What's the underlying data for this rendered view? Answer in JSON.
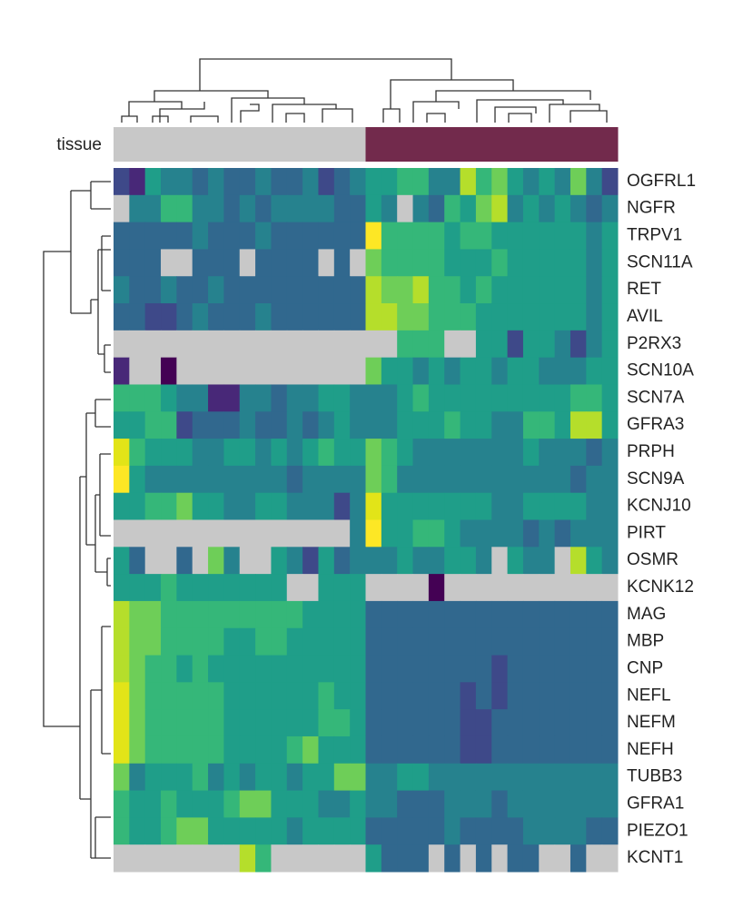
{
  "chart_data": {
    "type": "heatmap",
    "rows": [
      "OGFRL1",
      "NGFR",
      "TRPV1",
      "SCN11A",
      "RET",
      "AVIL",
      "P2RX3",
      "SCN10A",
      "SCN7A",
      "GFRA3",
      "PRPH",
      "SCN9A",
      "KCNJ10",
      "PIRT",
      "OSMR",
      "KCNK12",
      "MAG",
      "MBP",
      "CNP",
      "NEFL",
      "NEFM",
      "NEFH",
      "TUBB3",
      "GFRA1",
      "PIEZO1",
      "KCNT1"
    ],
    "tissue": {
      "label": "tissue",
      "colors": [
        "#c8c8c8",
        "#722a4c"
      ],
      "values": [
        0,
        0,
        0,
        0,
        0,
        0,
        0,
        0,
        0,
        0,
        0,
        0,
        0,
        0,
        0,
        0,
        1,
        1,
        1,
        1,
        1,
        1,
        1,
        1,
        1,
        1,
        1,
        1,
        1,
        1,
        1,
        1
      ]
    },
    "zlim": [
      0,
      10
    ],
    "colormap": [
      "#440154",
      "#482878",
      "#3e4989",
      "#31688e",
      "#26828e",
      "#1f9e89",
      "#35b779",
      "#6ece58",
      "#b5de2b",
      "#e2e418",
      "#fde725"
    ],
    "missing_color": "#c8c8c8",
    "values": [
      [
        2,
        1,
        5,
        4,
        4,
        3,
        4,
        3,
        3,
        4,
        3,
        3,
        4,
        2,
        3,
        4,
        5,
        5,
        6,
        6,
        4,
        4,
        8,
        6,
        7,
        5,
        4,
        5,
        4,
        7,
        4,
        2
      ],
      [
        null,
        4,
        4,
        6,
        6,
        4,
        4,
        3,
        4,
        3,
        4,
        4,
        4,
        4,
        3,
        3,
        5,
        4,
        null,
        4,
        3,
        6,
        5,
        7,
        8,
        4,
        5,
        4,
        5,
        4,
        3,
        4
      ],
      [
        3,
        3,
        3,
        3,
        3,
        4,
        3,
        3,
        3,
        4,
        3,
        3,
        3,
        3,
        3,
        3,
        10,
        6,
        6,
        6,
        6,
        5,
        6,
        6,
        5,
        5,
        5,
        5,
        5,
        5,
        4,
        5
      ],
      [
        3,
        3,
        3,
        null,
        null,
        3,
        3,
        3,
        null,
        3,
        3,
        3,
        3,
        null,
        3,
        null,
        7,
        6,
        6,
        6,
        6,
        5,
        5,
        5,
        6,
        5,
        5,
        5,
        5,
        5,
        4,
        5
      ],
      [
        4,
        3,
        3,
        4,
        3,
        3,
        4,
        3,
        3,
        3,
        3,
        3,
        3,
        3,
        3,
        3,
        8,
        7,
        7,
        8,
        6,
        6,
        5,
        6,
        5,
        5,
        5,
        5,
        5,
        5,
        4,
        5
      ],
      [
        3,
        3,
        2,
        2,
        3,
        4,
        3,
        3,
        3,
        4,
        3,
        3,
        3,
        3,
        3,
        3,
        8,
        8,
        7,
        7,
        6,
        6,
        6,
        5,
        5,
        5,
        5,
        5,
        5,
        5,
        4,
        5
      ],
      [
        null,
        null,
        null,
        null,
        null,
        null,
        null,
        null,
        null,
        null,
        null,
        null,
        null,
        null,
        null,
        null,
        null,
        null,
        6,
        6,
        6,
        null,
        null,
        5,
        5,
        2,
        5,
        5,
        4,
        2,
        4,
        5
      ],
      [
        1,
        null,
        null,
        0,
        null,
        null,
        null,
        null,
        null,
        null,
        null,
        null,
        null,
        null,
        null,
        null,
        7,
        5,
        5,
        4,
        5,
        4,
        5,
        5,
        4,
        5,
        5,
        4,
        4,
        4,
        5,
        5
      ],
      [
        6,
        6,
        6,
        5,
        4,
        4,
        1,
        1,
        4,
        4,
        3,
        4,
        4,
        5,
        5,
        4,
        4,
        4,
        5,
        6,
        5,
        5,
        5,
        5,
        5,
        5,
        5,
        5,
        5,
        6,
        6,
        5
      ],
      [
        5,
        5,
        6,
        6,
        2,
        3,
        3,
        3,
        4,
        3,
        3,
        4,
        3,
        4,
        5,
        4,
        4,
        4,
        5,
        5,
        5,
        6,
        5,
        5,
        4,
        4,
        6,
        6,
        5,
        8,
        8,
        5
      ],
      [
        9,
        6,
        5,
        5,
        5,
        4,
        4,
        5,
        5,
        4,
        5,
        4,
        5,
        6,
        5,
        5,
        7,
        6,
        5,
        4,
        4,
        4,
        4,
        4,
        4,
        4,
        5,
        4,
        4,
        4,
        3,
        4
      ],
      [
        10,
        5,
        4,
        4,
        4,
        4,
        4,
        4,
        4,
        4,
        4,
        3,
        4,
        4,
        4,
        4,
        7,
        6,
        4,
        4,
        4,
        4,
        4,
        4,
        4,
        4,
        4,
        4,
        4,
        3,
        4,
        4
      ],
      [
        5,
        5,
        6,
        6,
        7,
        5,
        5,
        4,
        4,
        5,
        5,
        4,
        4,
        4,
        2,
        4,
        9,
        5,
        5,
        5,
        5,
        5,
        5,
        5,
        4,
        4,
        5,
        5,
        5,
        5,
        4,
        4
      ],
      [
        null,
        null,
        null,
        null,
        null,
        null,
        null,
        null,
        null,
        null,
        null,
        null,
        null,
        null,
        null,
        4,
        10,
        5,
        5,
        6,
        6,
        5,
        4,
        4,
        4,
        4,
        3,
        4,
        3,
        4,
        4,
        4
      ],
      [
        5,
        3,
        null,
        null,
        3,
        null,
        7,
        4,
        null,
        null,
        5,
        4,
        2,
        5,
        3,
        4,
        4,
        4,
        5,
        4,
        4,
        5,
        5,
        4,
        null,
        5,
        4,
        4,
        null,
        8,
        5,
        4
      ],
      [
        5,
        5,
        5,
        6,
        5,
        5,
        5,
        5,
        5,
        5,
        5,
        null,
        null,
        5,
        5,
        5,
        null,
        null,
        null,
        null,
        0,
        null,
        null,
        null,
        null,
        null,
        null,
        null,
        null,
        null,
        null,
        null
      ],
      [
        8,
        7,
        7,
        6,
        6,
        6,
        6,
        6,
        6,
        6,
        6,
        6,
        5,
        5,
        5,
        5,
        3,
        3,
        3,
        3,
        3,
        3,
        3,
        3,
        3,
        3,
        3,
        3,
        3,
        3,
        3,
        3
      ],
      [
        8,
        7,
        7,
        6,
        6,
        6,
        6,
        5,
        5,
        6,
        6,
        5,
        5,
        5,
        5,
        5,
        3,
        3,
        3,
        3,
        3,
        3,
        3,
        3,
        3,
        3,
        3,
        3,
        3,
        3,
        3,
        3
      ],
      [
        8,
        7,
        6,
        6,
        5,
        6,
        5,
        5,
        5,
        5,
        5,
        5,
        5,
        5,
        5,
        5,
        3,
        3,
        3,
        3,
        3,
        3,
        3,
        3,
        2,
        3,
        3,
        3,
        3,
        3,
        3,
        3
      ],
      [
        9,
        7,
        6,
        6,
        6,
        6,
        6,
        5,
        5,
        5,
        5,
        5,
        5,
        6,
        5,
        5,
        3,
        3,
        3,
        3,
        3,
        3,
        2,
        3,
        2,
        3,
        3,
        3,
        3,
        3,
        3,
        3
      ],
      [
        9,
        7,
        6,
        6,
        6,
        6,
        6,
        5,
        5,
        5,
        5,
        5,
        5,
        6,
        6,
        5,
        3,
        3,
        3,
        3,
        3,
        3,
        2,
        2,
        3,
        3,
        3,
        3,
        3,
        3,
        3,
        3
      ],
      [
        9,
        7,
        6,
        6,
        6,
        6,
        6,
        5,
        5,
        5,
        5,
        6,
        7,
        5,
        5,
        5,
        3,
        3,
        3,
        3,
        3,
        3,
        2,
        2,
        3,
        3,
        3,
        3,
        3,
        3,
        3,
        3
      ],
      [
        7,
        4,
        5,
        5,
        5,
        6,
        4,
        5,
        4,
        5,
        5,
        4,
        5,
        5,
        7,
        7,
        4,
        4,
        5,
        5,
        4,
        4,
        4,
        4,
        4,
        4,
        4,
        4,
        4,
        4,
        4,
        4
      ],
      [
        6,
        5,
        5,
        6,
        5,
        5,
        5,
        6,
        7,
        7,
        5,
        5,
        5,
        4,
        4,
        5,
        4,
        4,
        3,
        3,
        3,
        4,
        4,
        4,
        3,
        4,
        4,
        4,
        4,
        4,
        4,
        4
      ],
      [
        6,
        5,
        5,
        6,
        7,
        7,
        5,
        5,
        5,
        5,
        5,
        4,
        5,
        5,
        5,
        5,
        3,
        3,
        3,
        3,
        3,
        4,
        3,
        3,
        3,
        3,
        4,
        4,
        4,
        4,
        3,
        3
      ],
      [
        null,
        null,
        null,
        null,
        null,
        null,
        null,
        null,
        8,
        6,
        null,
        null,
        null,
        null,
        null,
        null,
        5,
        3,
        3,
        3,
        null,
        3,
        null,
        3,
        null,
        3,
        3,
        null,
        null,
        3,
        null,
        null
      ]
    ]
  }
}
